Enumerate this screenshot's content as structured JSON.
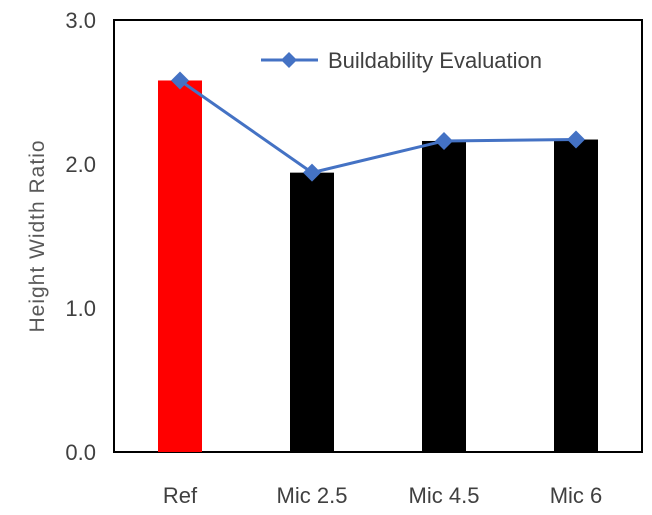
{
  "chart_data": {
    "type": "bar",
    "title": "",
    "xlabel": "",
    "ylabel": "Height Width Ratio",
    "ylim": [
      0,
      3.0
    ],
    "yticks": [
      "0.0",
      "1.0",
      "2.0",
      "3.0"
    ],
    "categories": [
      "Ref",
      "Mic 2.5",
      "Mic 4.5",
      "Mic 6"
    ],
    "bar_values": [
      2.58,
      1.94,
      2.16,
      2.17
    ],
    "bar_colors": [
      "#ff0000",
      "#000000",
      "#000000",
      "#000000"
    ],
    "series": [
      {
        "name": "Buildability Evaluation",
        "type": "line",
        "marker": "diamond",
        "color": "#4472c4",
        "values": [
          2.58,
          1.94,
          2.16,
          2.17
        ]
      }
    ],
    "legend_position": "top-right",
    "grid": false
  }
}
